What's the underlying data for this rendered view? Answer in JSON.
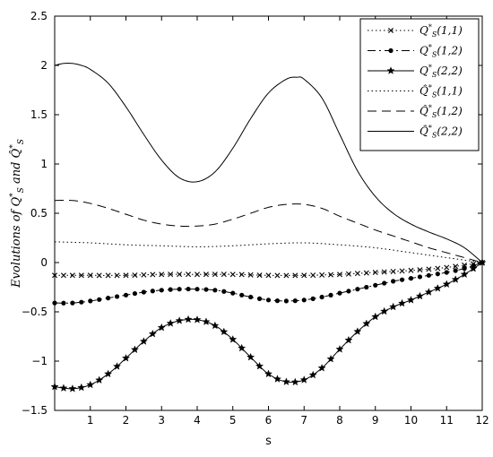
{
  "chart_data": {
    "type": "line",
    "title": "",
    "xlabel": "s",
    "ylabel": "Evolutions of Q*_S and Q̂*_S",
    "xlim": [
      0,
      12
    ],
    "ylim": [
      -1.5,
      2.5
    ],
    "xticks": [
      1,
      2,
      3,
      4,
      5,
      6,
      7,
      8,
      9,
      10,
      11,
      12
    ],
    "yticks": [
      -1.5,
      -1,
      -0.5,
      0,
      0.5,
      1,
      1.5,
      2,
      2.5
    ],
    "xtick_labels": [
      "1",
      "2",
      "3",
      "4",
      "5",
      "6",
      "7",
      "8",
      "9",
      "10",
      "11",
      "12"
    ],
    "ytick_labels": [
      "−1.5",
      "−1",
      "−0.5",
      "0",
      "0.5",
      "1",
      "1.5",
      "2",
      "2.5"
    ],
    "grid": false,
    "legend_position": "top-right",
    "series": [
      {
        "name": "Q*_S(1,1)",
        "style": "dotted-x",
        "x": [
          0,
          1,
          2,
          3,
          4,
          5,
          6,
          7,
          8,
          9,
          10,
          11,
          12
        ],
        "y": [
          -0.13,
          -0.13,
          -0.13,
          -0.12,
          -0.12,
          -0.12,
          -0.13,
          -0.13,
          -0.12,
          -0.1,
          -0.08,
          -0.05,
          0
        ]
      },
      {
        "name": "Q*_S(1,2)",
        "style": "dashdot-dot",
        "x": [
          0,
          0.5,
          1,
          1.5,
          2,
          2.5,
          3,
          3.5,
          4,
          4.5,
          5,
          5.5,
          6,
          6.5,
          7,
          7.5,
          8,
          8.5,
          9,
          9.5,
          10,
          10.5,
          11,
          11.5,
          12
        ],
        "y": [
          -0.41,
          -0.41,
          -0.39,
          -0.36,
          -0.33,
          -0.3,
          -0.28,
          -0.27,
          -0.27,
          -0.28,
          -0.31,
          -0.35,
          -0.38,
          -0.39,
          -0.38,
          -0.35,
          -0.31,
          -0.27,
          -0.23,
          -0.19,
          -0.16,
          -0.13,
          -0.1,
          -0.06,
          0
        ]
      },
      {
        "name": "Q*_S(2,2)",
        "style": "solid-star",
        "x": [
          0,
          0.5,
          1,
          1.5,
          2,
          2.5,
          3,
          3.5,
          4,
          4.5,
          5,
          5.5,
          6,
          6.5,
          7,
          7.5,
          8,
          8.5,
          9,
          9.5,
          10,
          10.5,
          11,
          11.5,
          12
        ],
        "y": [
          -1.26,
          -1.28,
          -1.24,
          -1.13,
          -0.97,
          -0.8,
          -0.66,
          -0.59,
          -0.58,
          -0.64,
          -0.78,
          -0.96,
          -1.13,
          -1.21,
          -1.19,
          -1.07,
          -0.88,
          -0.7,
          -0.55,
          -0.45,
          -0.38,
          -0.3,
          -0.22,
          -0.12,
          0
        ]
      },
      {
        "name": "Q̂*_S(1,1)",
        "style": "dotted",
        "x": [
          0,
          1,
          2,
          3,
          4,
          5,
          6,
          7,
          8,
          9,
          10,
          11,
          12
        ],
        "y": [
          0.21,
          0.2,
          0.18,
          0.17,
          0.16,
          0.17,
          0.19,
          0.2,
          0.18,
          0.15,
          0.1,
          0.05,
          0
        ]
      },
      {
        "name": "Q̂*_S(1,2)",
        "style": "dashed",
        "x": [
          0,
          0.5,
          1,
          1.5,
          2,
          2.5,
          3,
          3.5,
          4,
          4.5,
          5,
          5.5,
          6,
          6.5,
          7,
          7.5,
          8,
          8.5,
          9,
          9.5,
          10,
          10.5,
          11,
          11.5,
          12
        ],
        "y": [
          0.63,
          0.63,
          0.6,
          0.55,
          0.49,
          0.43,
          0.39,
          0.37,
          0.37,
          0.39,
          0.44,
          0.5,
          0.56,
          0.59,
          0.59,
          0.55,
          0.47,
          0.4,
          0.33,
          0.27,
          0.21,
          0.15,
          0.1,
          0.05,
          0
        ]
      },
      {
        "name": "Q̂*_S(2,2)",
        "style": "solid",
        "x": [
          0,
          0.25,
          0.5,
          0.75,
          1,
          1.5,
          2,
          2.5,
          3,
          3.5,
          4,
          4.5,
          5,
          5.5,
          6,
          6.5,
          6.8,
          7,
          7.5,
          8,
          8.5,
          9,
          9.5,
          10,
          10.5,
          11,
          11.5,
          12
        ],
        "y": [
          2.0,
          2.02,
          2.02,
          2.0,
          1.96,
          1.82,
          1.58,
          1.3,
          1.04,
          0.86,
          0.82,
          0.92,
          1.16,
          1.46,
          1.72,
          1.86,
          1.88,
          1.86,
          1.67,
          1.3,
          0.93,
          0.67,
          0.5,
          0.39,
          0.31,
          0.24,
          0.15,
          0
        ]
      }
    ]
  }
}
